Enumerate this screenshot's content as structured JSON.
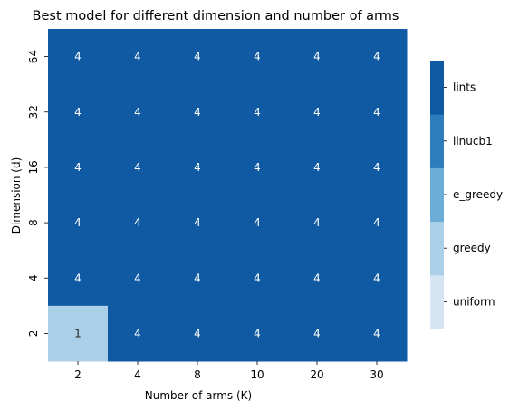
{
  "chart_data": {
    "type": "heatmap",
    "title": "Best model for different dimension and number of arms",
    "xlabel": "Number of arms (K)",
    "ylabel": "Dimension (d)",
    "x_categories": [
      "2",
      "4",
      "8",
      "10",
      "20",
      "30"
    ],
    "y_categories": [
      "64",
      "32",
      "16",
      "8",
      "4",
      "2"
    ],
    "values": [
      [
        4,
        4,
        4,
        4,
        4,
        4
      ],
      [
        4,
        4,
        4,
        4,
        4,
        4
      ],
      [
        4,
        4,
        4,
        4,
        4,
        4
      ],
      [
        4,
        4,
        4,
        4,
        4,
        4
      ],
      [
        4,
        4,
        4,
        4,
        4,
        4
      ],
      [
        1,
        4,
        4,
        4,
        4,
        4
      ]
    ],
    "colorbar": {
      "labels": [
        "uniform",
        "greedy",
        "e_greedy",
        "linucb1",
        "lints"
      ],
      "colors": [
        "#d6e5f4",
        "#abcfe6",
        "#6badd6",
        "#2d7cbb",
        "#0f5aa3"
      ]
    },
    "legend_position": "right"
  }
}
